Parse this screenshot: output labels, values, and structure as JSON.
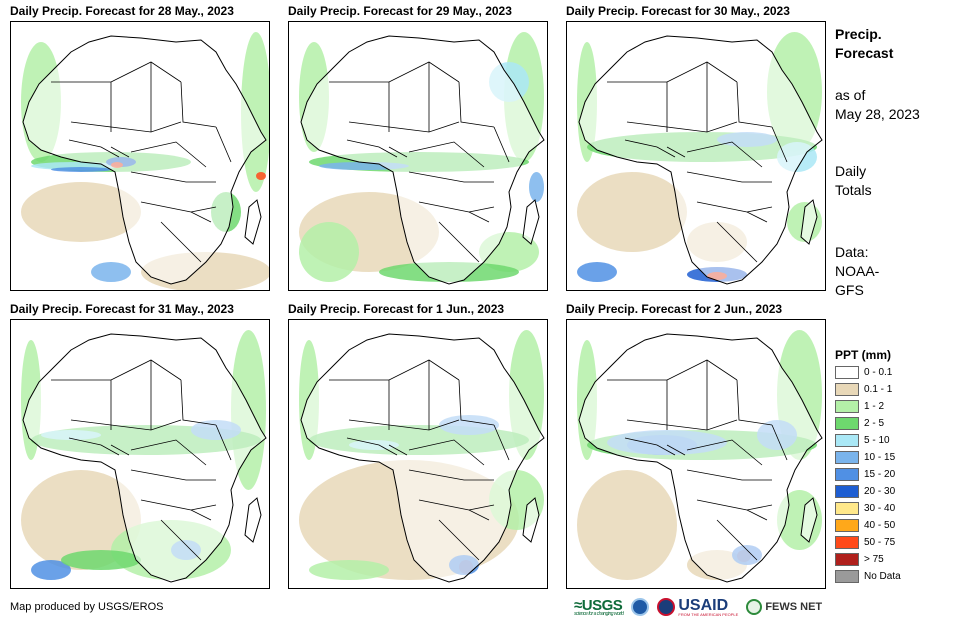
{
  "panels": [
    {
      "title": "Daily Precip. Forecast for 28 May., 2023"
    },
    {
      "title": "Daily Precip. Forecast for 29 May., 2023"
    },
    {
      "title": "Daily Precip. Forecast for 30 May., 2023"
    },
    {
      "title": "Daily Precip. Forecast for 31 May., 2023"
    },
    {
      "title": "Daily Precip. Forecast for 1 Jun., 2023"
    },
    {
      "title": "Daily Precip. Forecast for 2 Jun., 2023"
    }
  ],
  "side": {
    "title_line1": "Precip.",
    "title_line2": "Forecast",
    "asof_line1": "as of",
    "asof_line2": "May 28, 2023",
    "totals_line1": "Daily",
    "totals_line2": "Totals",
    "data_line1": "Data:",
    "data_line2": "NOAA-",
    "data_line3": "GFS"
  },
  "legend": {
    "title": "PPT (mm)",
    "items": [
      {
        "label": "0 - 0.1",
        "color": "#ffffff"
      },
      {
        "label": "0.1 - 1",
        "color": "#e8d8b8"
      },
      {
        "label": "1 - 2",
        "color": "#b4f0a8"
      },
      {
        "label": "2 - 5",
        "color": "#6ed86e"
      },
      {
        "label": "5 - 10",
        "color": "#aae8f6"
      },
      {
        "label": "10 - 15",
        "color": "#7ab4ec"
      },
      {
        "label": "15 - 20",
        "color": "#5090e4"
      },
      {
        "label": "20 - 30",
        "color": "#1e5ed2"
      },
      {
        "label": "30 - 40",
        "color": "#ffe88a"
      },
      {
        "label": "40 - 50",
        "color": "#ffa81a"
      },
      {
        "label": "50 - 75",
        "color": "#ff4a1a"
      },
      {
        "label": "> 75",
        "color": "#b0201c"
      },
      {
        "label": "No Data",
        "color": "#9a9a9a"
      }
    ]
  },
  "footer": {
    "credit": "Map produced by USGS/EROS",
    "logo_usgs": "≈USGS",
    "logo_usgs_tag": "science for a changing world",
    "logo_usaid": "USAID",
    "logo_usaid_tag": "FROM THE AMERICAN PEOPLE",
    "logo_fews": "FEWS NET"
  },
  "colors": {
    "outline": "#000000",
    "dry": "#e8d8b8",
    "light": "#b4f0a8",
    "green": "#6ed86e",
    "cyan": "#aae8f6",
    "blue": "#7ab4ec",
    "blue2": "#5090e4",
    "heavy": "#1e5ed2",
    "red": "#ff4a1a"
  }
}
